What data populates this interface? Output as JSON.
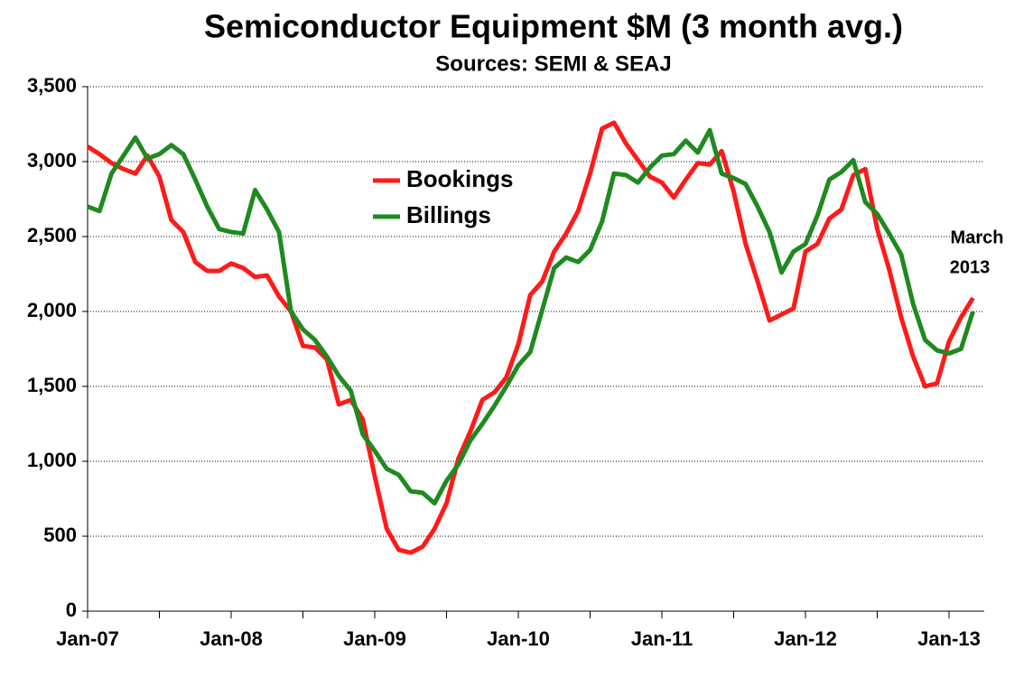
{
  "chart_data": {
    "type": "line",
    "title": "Semiconductor Equipment $M (3 month avg.)",
    "subtitle": "Sources: SEMI & SEAJ",
    "annotations": [
      "March",
      "2013"
    ],
    "categories": [
      "Jan-07",
      null,
      null,
      null,
      null,
      null,
      null,
      null,
      null,
      null,
      null,
      null,
      "Jan-08",
      null,
      null,
      null,
      null,
      null,
      null,
      null,
      null,
      null,
      null,
      null,
      "Jan-09",
      null,
      null,
      null,
      null,
      null,
      null,
      null,
      null,
      null,
      null,
      null,
      "Jan-10",
      null,
      null,
      null,
      null,
      null,
      null,
      null,
      null,
      null,
      null,
      null,
      "Jan-11",
      null,
      null,
      null,
      null,
      null,
      null,
      null,
      null,
      null,
      null,
      null,
      "Jan-12",
      null,
      null,
      null,
      null,
      null,
      null,
      null,
      null,
      null,
      null,
      null,
      "Jan-13",
      null,
      null
    ],
    "series": [
      {
        "name": "Bookings",
        "color": "#ff1a1a",
        "values": [
          3100,
          3050,
          2990,
          2950,
          2920,
          3040,
          2900,
          2610,
          2530,
          2330,
          2270,
          2270,
          2320,
          2290,
          2230,
          2240,
          2100,
          2000,
          1770,
          1760,
          1680,
          1380,
          1410,
          1280,
          900,
          550,
          410,
          390,
          430,
          550,
          720,
          1020,
          1200,
          1410,
          1460,
          1560,
          1780,
          2110,
          2200,
          2400,
          2520,
          2670,
          2920,
          3220,
          3260,
          3120,
          3010,
          2900,
          2860,
          2760,
          2880,
          2990,
          2980,
          3070,
          2800,
          2450,
          2200,
          1940,
          1980,
          2020,
          2400,
          2450,
          2620,
          2680,
          2910,
          2950,
          2550,
          2280,
          1960,
          1700,
          1500,
          1520,
          1800,
          1960,
          2090
        ]
      },
      {
        "name": "Billings",
        "color": "#1f8a1f",
        "values": [
          2700,
          2670,
          2920,
          3040,
          3160,
          3020,
          3050,
          3110,
          3050,
          2880,
          2700,
          2550,
          2530,
          2520,
          2810,
          2680,
          2530,
          2000,
          1880,
          1810,
          1700,
          1570,
          1470,
          1180,
          1070,
          950,
          910,
          800,
          790,
          720,
          870,
          980,
          1140,
          1250,
          1370,
          1500,
          1640,
          1730,
          2010,
          2290,
          2360,
          2330,
          2410,
          2600,
          2920,
          2910,
          2860,
          2960,
          3040,
          3050,
          3140,
          3060,
          3210,
          2920,
          2890,
          2850,
          2700,
          2530,
          2260,
          2400,
          2450,
          2640,
          2880,
          2930,
          3010,
          2730,
          2650,
          2520,
          2380,
          2050,
          1810,
          1740,
          1720,
          1750,
          2000
        ]
      }
    ],
    "ylim": [
      0,
      3500
    ],
    "yticks": [
      0,
      500,
      {
        "value": 1000,
        "label": "1,000"
      },
      {
        "value": 1500,
        "label": "1,500"
      },
      {
        "value": 2000,
        "label": "2,000"
      },
      {
        "value": 2500,
        "label": "2,500"
      },
      {
        "value": 3000,
        "label": "3,000"
      },
      {
        "value": 3500,
        "label": "3,500"
      }
    ],
    "grid": true
  }
}
